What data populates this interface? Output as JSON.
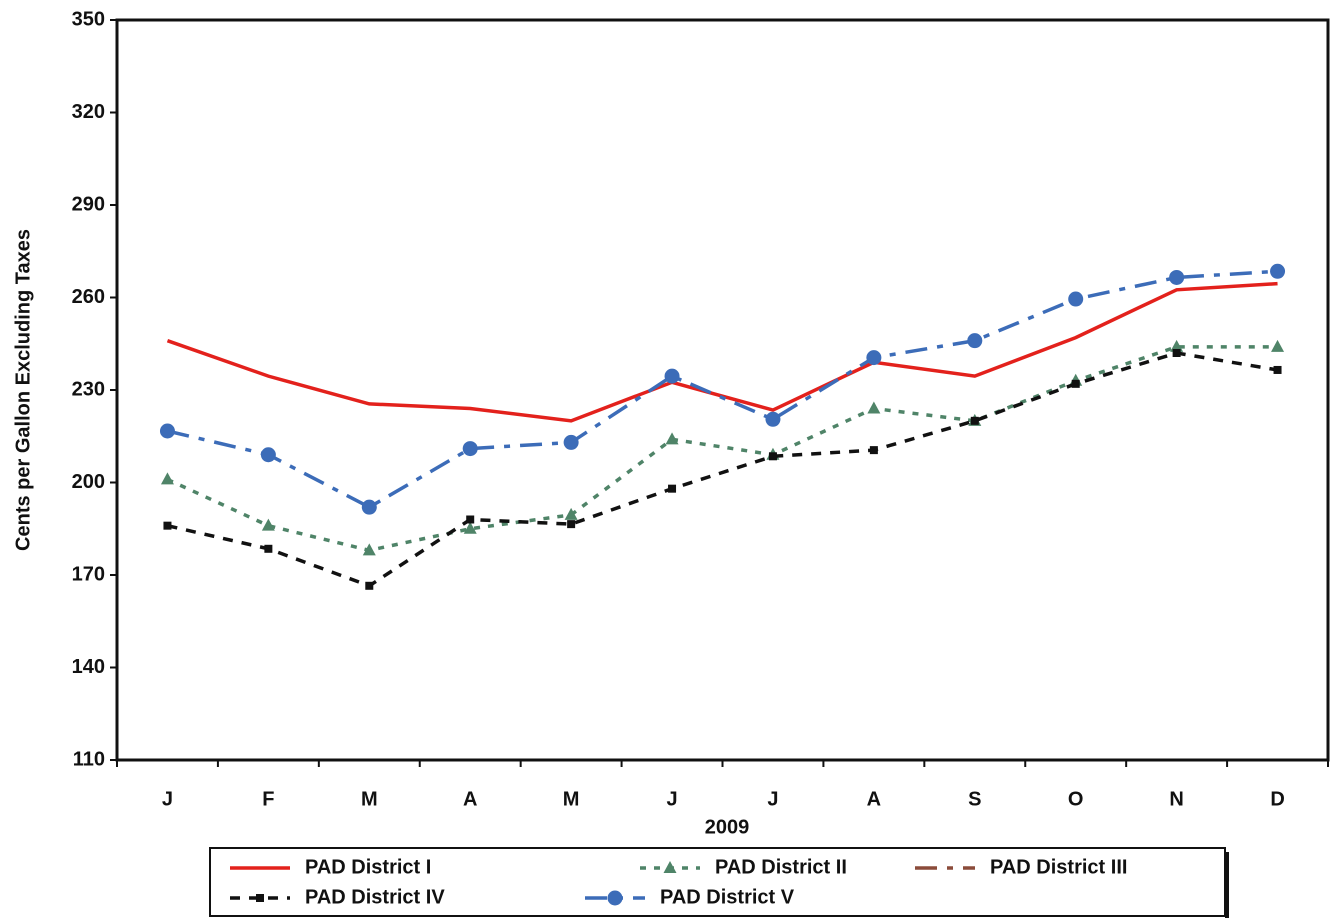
{
  "chart_data": {
    "type": "line",
    "x_label": "2009",
    "y_label": "Cents per Gallon Excluding Taxes",
    "categories": [
      "J",
      "F",
      "M",
      "A",
      "M",
      "J",
      "J",
      "A",
      "S",
      "O",
      "N",
      "D"
    ],
    "ylim": [
      110,
      350
    ],
    "yticks": [
      110,
      140,
      170,
      200,
      230,
      260,
      290,
      320,
      350
    ],
    "legend": "bottom",
    "series": [
      {
        "name": "PAD District I",
        "color": "#e3211c",
        "dash": "solid",
        "marker": "none",
        "values": [
          246,
          234.5,
          225.5,
          224,
          220,
          232.5,
          223.5,
          239,
          234.5,
          247,
          262.5,
          264.5
        ]
      },
      {
        "name": "PAD District II",
        "color": "#4f8468",
        "dash": "dot",
        "marker": "triangle",
        "values": [
          201,
          186,
          178,
          185,
          189.5,
          214,
          209,
          224,
          220,
          233,
          244,
          244
        ]
      },
      {
        "name": "PAD District III",
        "color": "#8b4b3a",
        "dash": "dashdot",
        "marker": "none",
        "values": [
          null,
          null,
          null,
          null,
          null,
          null,
          null,
          null,
          null,
          null,
          null,
          null
        ]
      },
      {
        "name": "PAD District IV",
        "color": "#111111",
        "dash": "dash",
        "marker": "square",
        "values": [
          186,
          178.5,
          166.5,
          188,
          186.5,
          198,
          208.5,
          210.5,
          220,
          232,
          242,
          236.5
        ]
      },
      {
        "name": "PAD District V",
        "color": "#3c6cb8",
        "dash": "dashdot",
        "marker": "circle",
        "values": [
          216.7,
          209,
          192,
          211,
          213,
          234.5,
          220.5,
          240.5,
          246,
          259.5,
          266.5,
          268.5
        ]
      }
    ]
  }
}
